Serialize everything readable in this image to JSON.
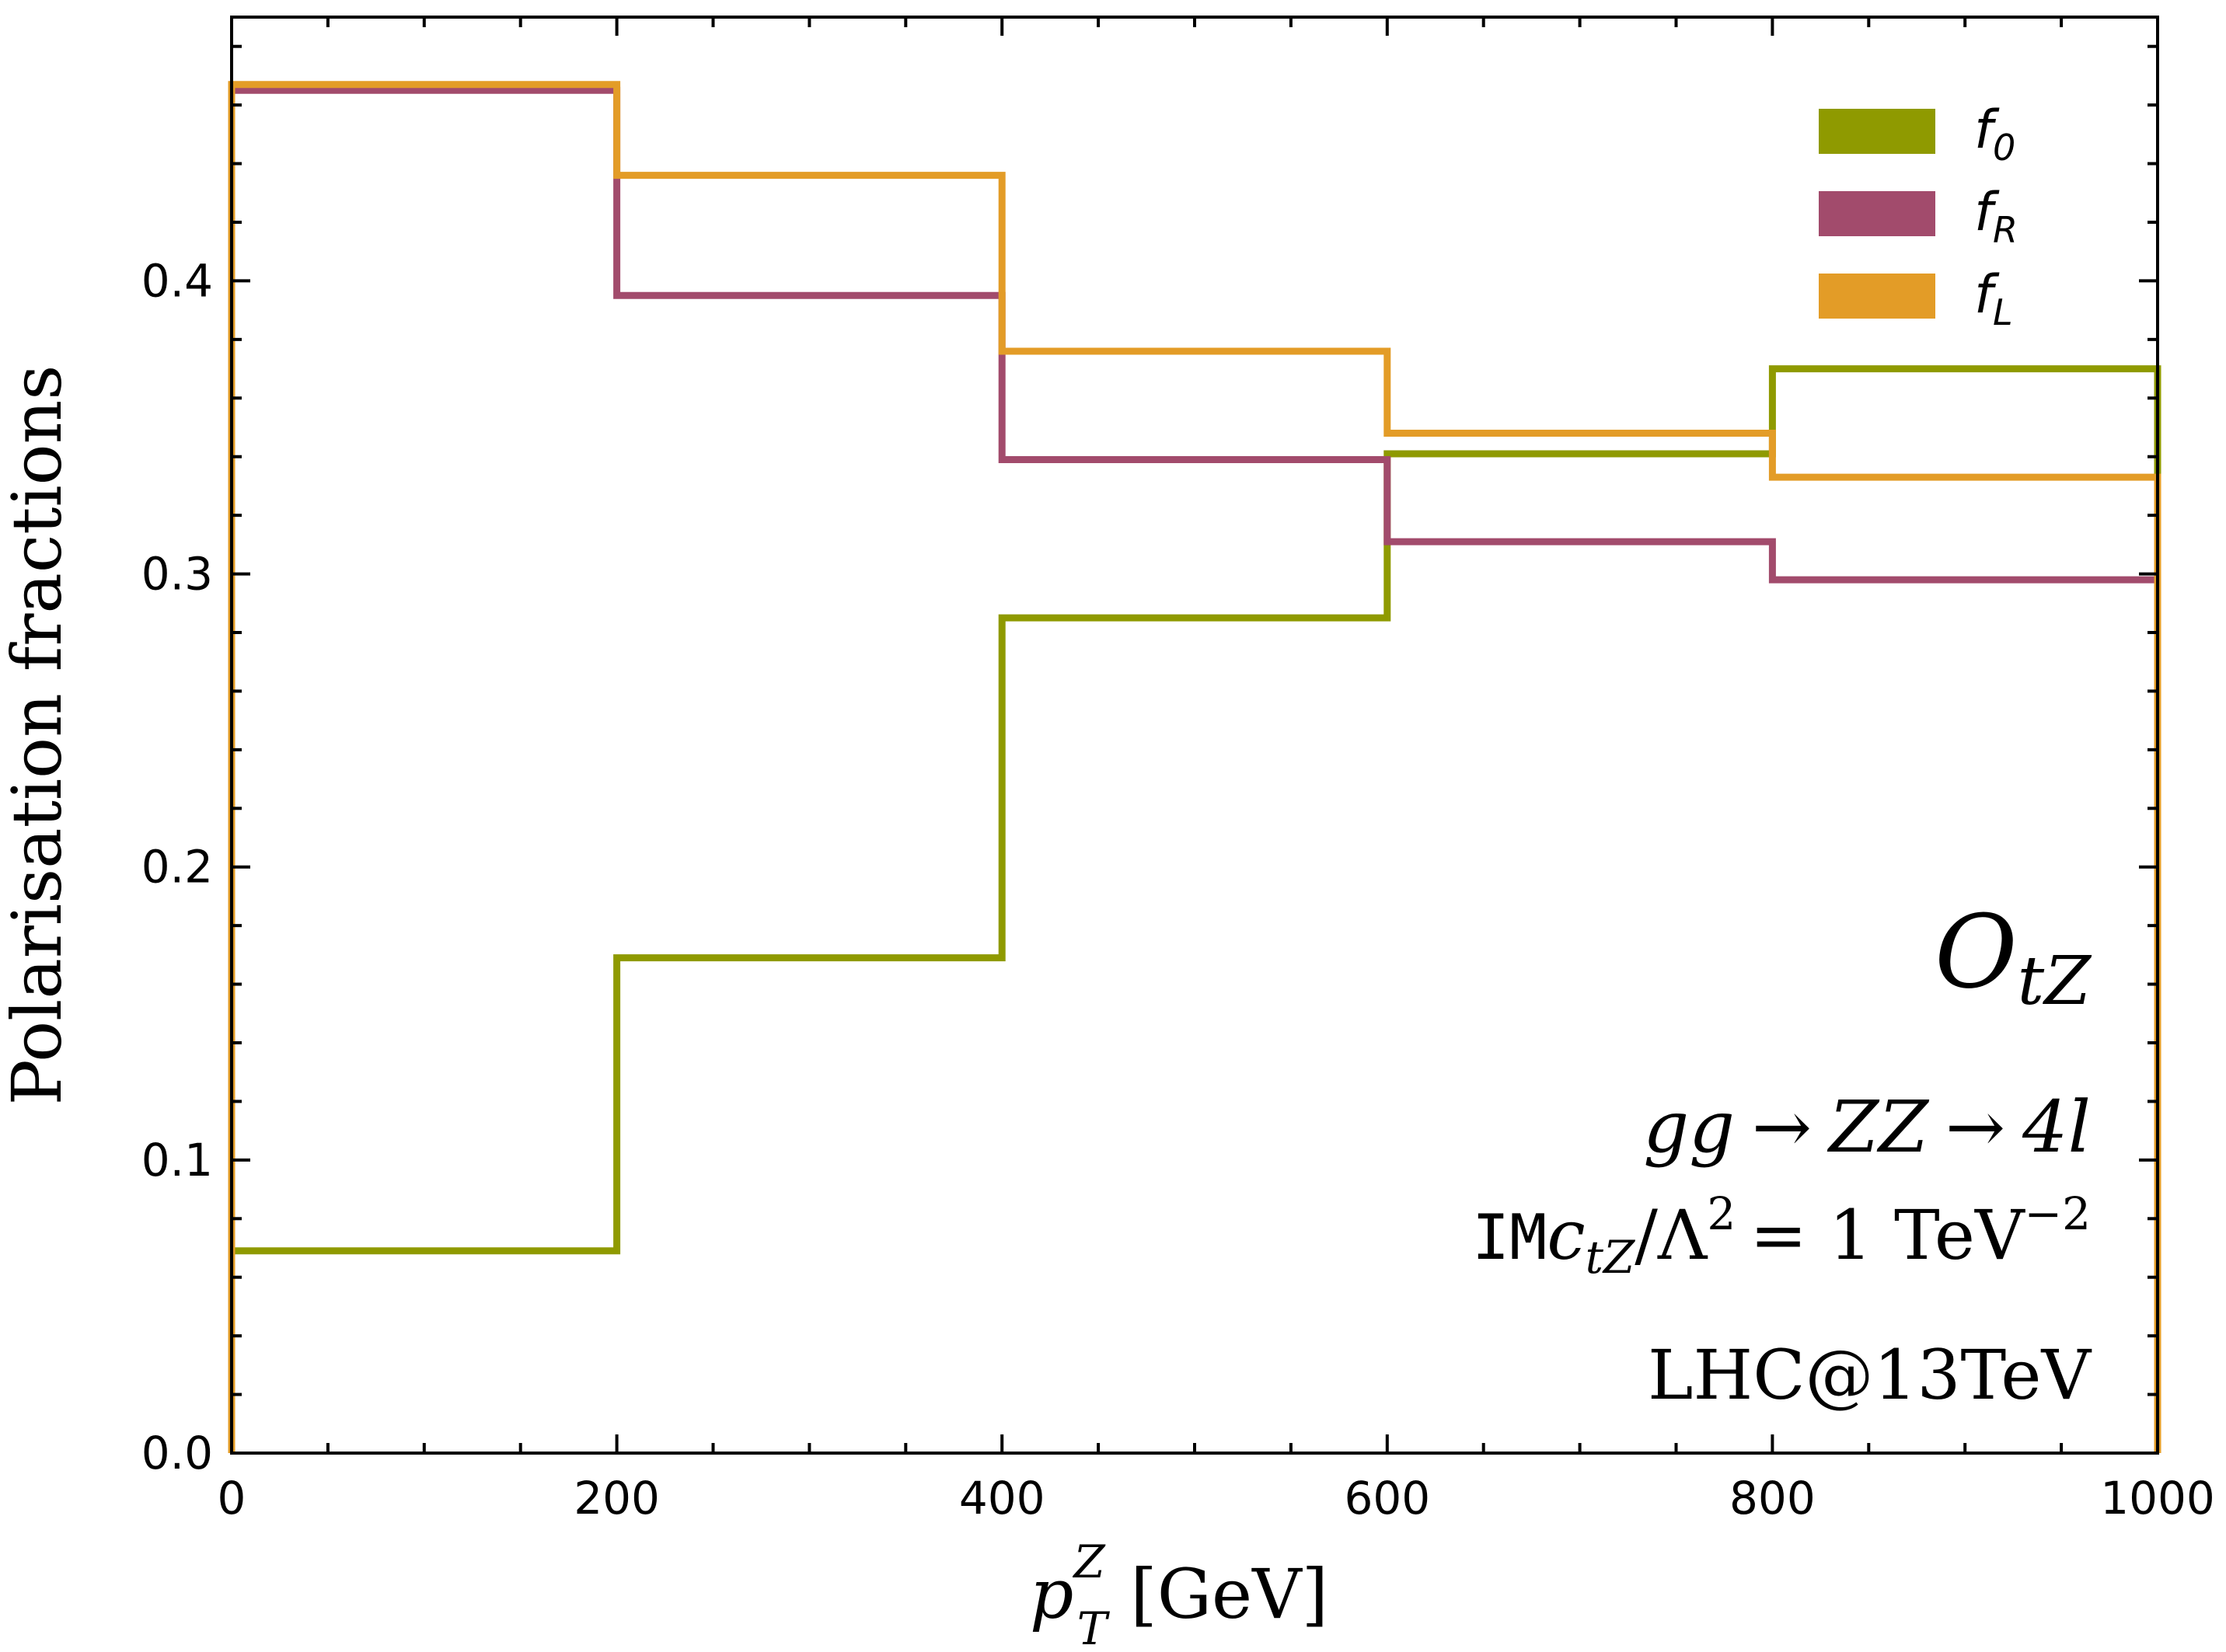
{
  "chart_data": {
    "type": "step",
    "xlabel": "p_T^Z [GeV]",
    "xlabel_parts": {
      "symbol": "p",
      "sub": "T",
      "sup": "Z",
      "unit": "[GeV]"
    },
    "ylabel": "Polarisation fractions",
    "xlim": [
      0,
      1000
    ],
    "ylim": [
      0,
      0.49
    ],
    "x_ticks": [
      0,
      200,
      400,
      600,
      800,
      1000
    ],
    "x_tick_labels": [
      "0",
      "200",
      "400",
      "600",
      "800",
      "1000"
    ],
    "y_ticks": [
      0.0,
      0.1,
      0.2,
      0.3,
      0.4
    ],
    "y_tick_labels": [
      "0.0",
      "0.1",
      "0.2",
      "0.3",
      "0.4"
    ],
    "bin_edges": [
      0,
      200,
      400,
      600,
      800,
      1000
    ],
    "series": [
      {
        "name": "f_0",
        "label_main": "f",
        "label_sub": "0",
        "color": "#8f9a00",
        "values": [
          0.069,
          0.169,
          0.285,
          0.341,
          0.37
        ]
      },
      {
        "name": "f_R",
        "label_main": "f",
        "label_sub": "R",
        "color": "#a24b6c",
        "values": [
          0.465,
          0.395,
          0.339,
          0.311,
          0.298
        ]
      },
      {
        "name": "f_L",
        "label_main": "f",
        "label_sub": "L",
        "color": "#e39c27",
        "values": [
          0.467,
          0.436,
          0.376,
          0.348,
          0.333
        ]
      }
    ],
    "legend_position": "top-right",
    "annotations": {
      "operator": {
        "main": "O",
        "sub": "tZ"
      },
      "process": {
        "parts": [
          "gg",
          "→",
          "ZZ",
          "→",
          "4l"
        ]
      },
      "coupling": {
        "prefix": "IM",
        "c": "c",
        "c_sub": "tZ",
        "rest": "/Λ",
        "rest_sup": "2",
        "equals": "= 1 TeV",
        "equals_sup": "−2"
      },
      "collider": "LHC@13TeV"
    }
  }
}
